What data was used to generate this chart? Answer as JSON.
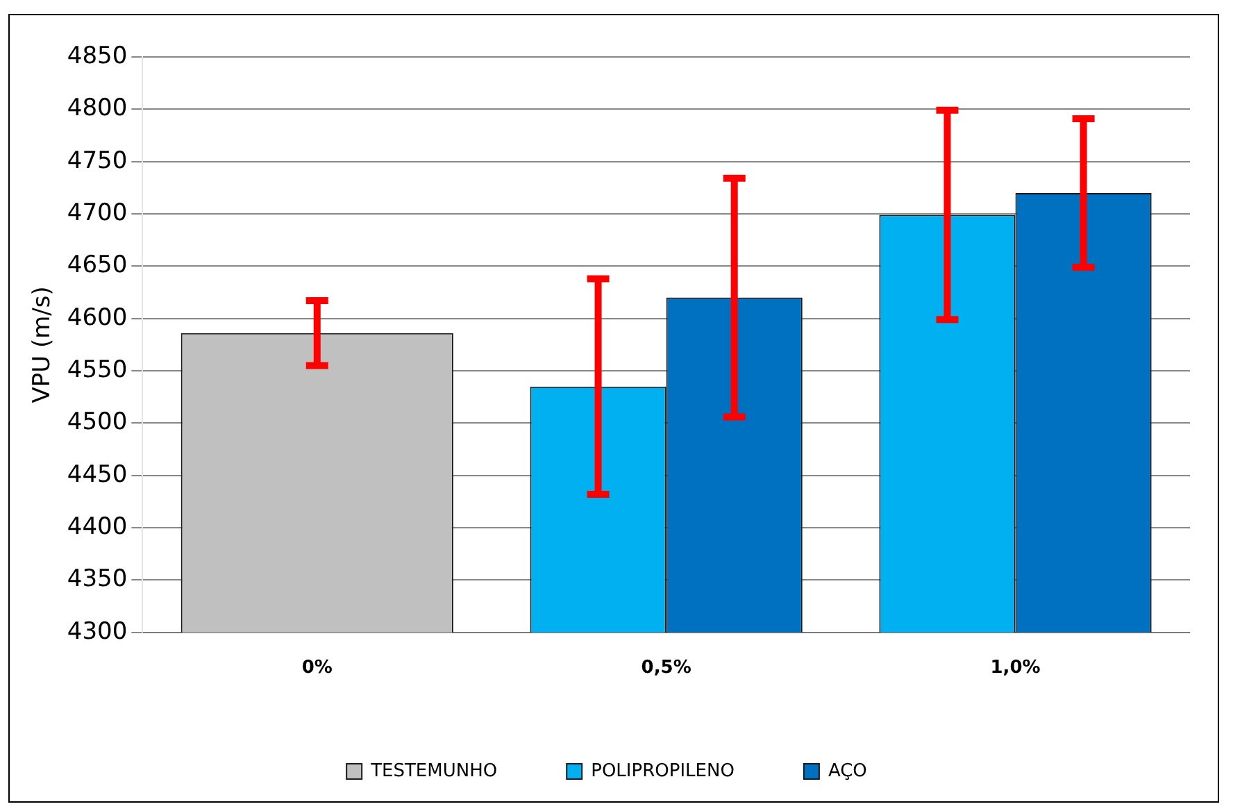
{
  "chart_data": {
    "type": "bar",
    "ylabel": "VPU (m/s)",
    "categories": [
      "0%",
      "0,5%",
      "1,0%"
    ],
    "series": [
      {
        "name": "TESTEMUNHO",
        "color": "#c0c0c0",
        "values": [
          4586,
          null,
          null
        ],
        "errors": [
          31,
          null,
          null
        ]
      },
      {
        "name": "POLIPROPILENO",
        "color": "#00b0f0",
        "values": [
          null,
          4535,
          4699
        ],
        "errors": [
          null,
          103,
          100
        ]
      },
      {
        "name": "AÇO",
        "color": "#0070c0",
        "values": [
          null,
          4620,
          4720
        ],
        "errors": [
          null,
          114,
          71
        ]
      }
    ],
    "ylim": [
      4300,
      4850
    ],
    "yticks": [
      4300,
      4350,
      4400,
      4450,
      4500,
      4550,
      4600,
      4650,
      4700,
      4750,
      4800,
      4850
    ],
    "grid": "y",
    "legend": "bottom"
  }
}
